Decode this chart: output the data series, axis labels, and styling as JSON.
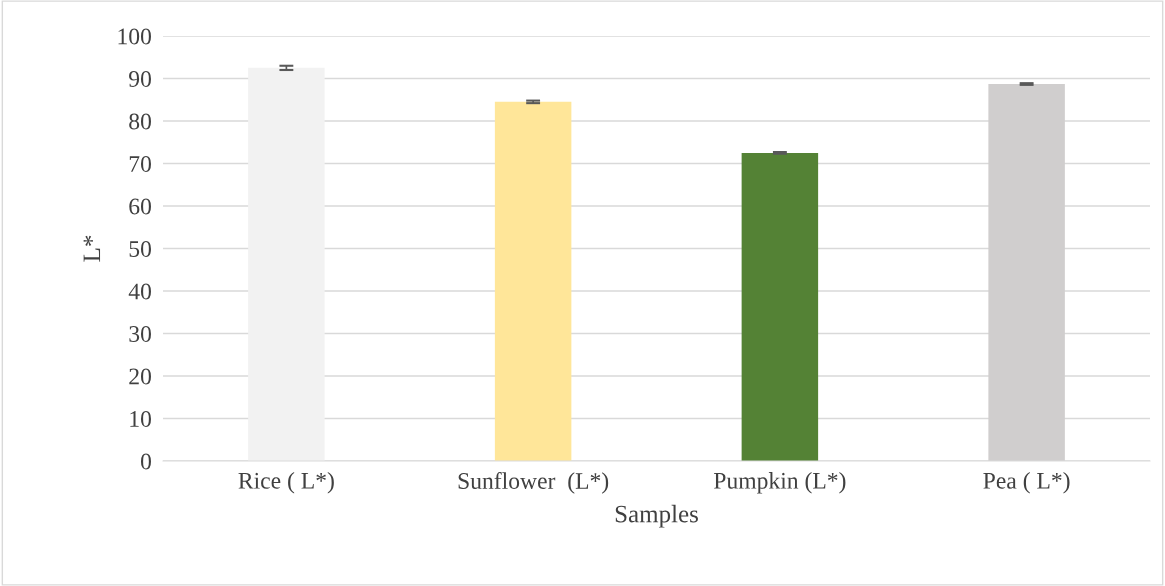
{
  "chart_data": {
    "type": "bar",
    "xlabel": "Samples",
    "ylabel": "L*",
    "categories": [
      "Rice ( L*)",
      "Sunflower  (L*)",
      "Pumpkin (L*)",
      "Pea ( L*)"
    ],
    "values": [
      92.5,
      84.5,
      72.5,
      88.7
    ],
    "colors": [
      "#f2f2f2",
      "#ffe699",
      "#548235",
      "#d0cece"
    ],
    "errors": [
      0.5,
      0.3,
      0.2,
      0.2
    ],
    "ylim": [
      0,
      100
    ],
    "yticks": [
      0,
      10,
      20,
      30,
      40,
      50,
      60,
      70,
      80,
      90,
      100
    ],
    "grid": "y"
  }
}
